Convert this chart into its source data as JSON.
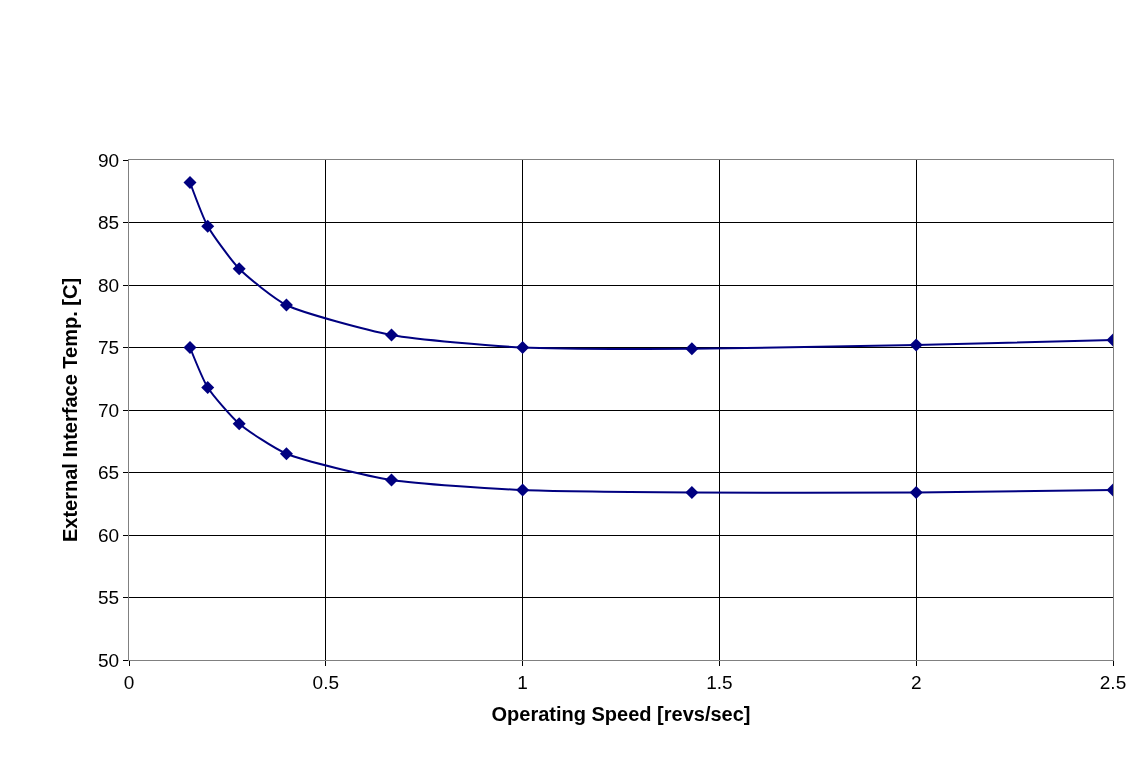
{
  "chart_data": {
    "type": "line",
    "xlabel": "Operating Speed [revs/sec]",
    "ylabel": "External Interface Temp. [C]",
    "x": [
      0.155,
      0.2,
      0.28,
      0.4,
      0.667,
      1,
      1.43,
      2,
      2.5
    ],
    "series": [
      {
        "color": "#000080",
        "values": [
          88.2,
          84.7,
          81.3,
          78.4,
          76.0,
          75.0,
          74.9,
          75.2,
          75.6
        ]
      },
      {
        "color": "#000080",
        "values": [
          75.0,
          71.8,
          68.9,
          66.5,
          64.4,
          63.6,
          63.4,
          63.4,
          63.6
        ]
      }
    ],
    "xlim": [
      0,
      2.5
    ],
    "xticks": [
      0,
      0.5,
      1,
      1.5,
      2,
      2.5
    ],
    "ylim": [
      50,
      90
    ],
    "yticks": [
      50,
      55,
      60,
      65,
      70,
      75,
      80,
      85,
      90
    ],
    "grid": true,
    "marker": "diamond",
    "line_style": "solid"
  }
}
